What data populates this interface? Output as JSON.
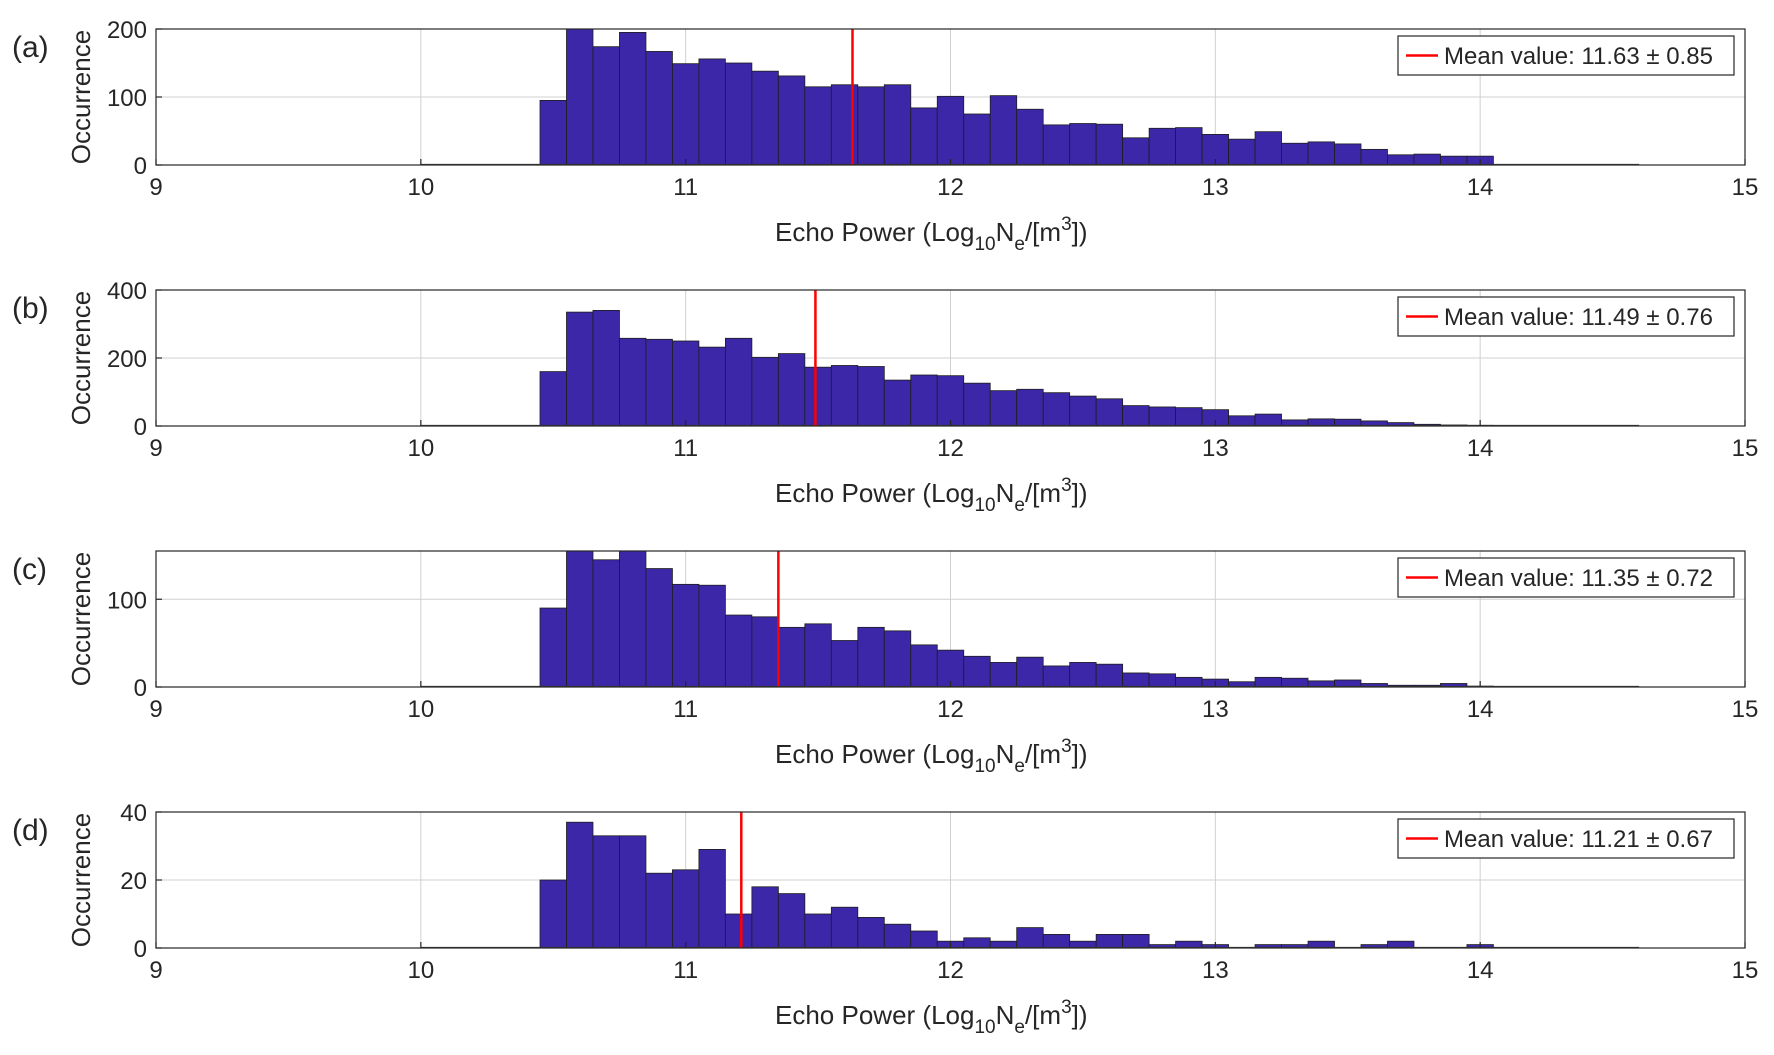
{
  "figure": {
    "colors": {
      "bar": "#3b27a8",
      "mean_line": "#ff0000",
      "axis": "#262626",
      "grid": "#d0d0d0"
    }
  },
  "chart_data": [
    {
      "type": "bar",
      "panel_label": "(a)",
      "ylabel": "Occurrence",
      "xlabel_parts": [
        "Echo Power (Log",
        "10",
        "N",
        "e",
        "/[m",
        "3",
        "])"
      ],
      "xlim": [
        9,
        15
      ],
      "x_ticks": [
        "9",
        "10",
        "11",
        "12",
        "13",
        "14",
        "15"
      ],
      "ylim": [
        0,
        200
      ],
      "y_ticks": [
        0,
        100,
        200
      ],
      "y_tick_labels": [
        "0",
        "100",
        "200"
      ],
      "bin_start": 10.45,
      "bin_width": 0.1,
      "values": [
        95,
        200,
        174,
        195,
        167,
        149,
        156,
        150,
        138,
        131,
        115,
        118,
        115,
        118,
        84,
        101,
        75,
        102,
        82,
        59,
        61,
        60,
        40,
        54,
        55,
        45,
        38,
        49,
        32,
        34,
        31,
        23,
        15,
        16,
        13,
        13
      ],
      "mean_value": 11.63,
      "legend": "Mean value: 11.63 ± 0.85"
    },
    {
      "type": "bar",
      "panel_label": "(b)",
      "ylabel": "Occurrence",
      "xlabel_parts": [
        "Echo Power (Log",
        "10",
        "N",
        "e",
        "/[m",
        "3",
        "])"
      ],
      "xlim": [
        9,
        15
      ],
      "x_ticks": [
        "9",
        "10",
        "11",
        "12",
        "13",
        "14",
        "15"
      ],
      "ylim": [
        0,
        400
      ],
      "y_ticks": [
        0,
        200,
        400
      ],
      "y_tick_labels": [
        "0",
        "200",
        "400"
      ],
      "bin_start": 10.45,
      "bin_width": 0.1,
      "values": [
        160,
        335,
        340,
        258,
        255,
        250,
        232,
        258,
        202,
        213,
        173,
        178,
        175,
        135,
        150,
        148,
        126,
        104,
        108,
        98,
        88,
        80,
        60,
        56,
        54,
        48,
        30,
        35,
        18,
        21,
        20,
        15,
        10,
        5,
        3,
        2
      ],
      "mean_value": 11.49,
      "legend": "Mean value: 11.49 ± 0.76"
    },
    {
      "type": "bar",
      "panel_label": "(c)",
      "ylabel": "Occurrence",
      "xlabel_parts": [
        "Echo Power (Log",
        "10",
        "N",
        "e",
        "/[m",
        "3",
        "])"
      ],
      "xlim": [
        9,
        15
      ],
      "x_ticks": [
        "9",
        "10",
        "11",
        "12",
        "13",
        "14",
        "15"
      ],
      "ylim": [
        0,
        155
      ],
      "y_ticks": [
        0,
        100
      ],
      "y_tick_labels": [
        "0",
        "100"
      ],
      "bin_start": 10.45,
      "bin_width": 0.1,
      "values": [
        90,
        155,
        145,
        155,
        135,
        117,
        116,
        82,
        80,
        68,
        72,
        53,
        68,
        64,
        48,
        42,
        35,
        28,
        34,
        24,
        28,
        26,
        16,
        15,
        11,
        9,
        6,
        11,
        10,
        7,
        8,
        4,
        2,
        2,
        4,
        1
      ],
      "mean_value": 11.35,
      "legend": "Mean value: 11.35 ± 0.72"
    },
    {
      "type": "bar",
      "panel_label": "(d)",
      "ylabel": "Occurrence",
      "xlabel_parts": [
        "Echo Power (Log",
        "10",
        "N",
        "e",
        "/[m",
        "3",
        "])"
      ],
      "xlim": [
        9,
        15
      ],
      "x_ticks": [
        "9",
        "10",
        "11",
        "12",
        "13",
        "14",
        "15"
      ],
      "ylim": [
        0,
        40
      ],
      "y_ticks": [
        0,
        20,
        40
      ],
      "y_tick_labels": [
        "0",
        "20",
        "40"
      ],
      "bin_start": 10.45,
      "bin_width": 0.1,
      "values": [
        20,
        37,
        33,
        33,
        22,
        23,
        29,
        10,
        18,
        16,
        10,
        12,
        9,
        7,
        5,
        2,
        3,
        2,
        6,
        4,
        2,
        4,
        4,
        1,
        2,
        1,
        0,
        1,
        1,
        2,
        0,
        1,
        2,
        0,
        0,
        1
      ],
      "mean_value": 11.21,
      "legend": "Mean value: 11.21 ± 0.67"
    }
  ]
}
